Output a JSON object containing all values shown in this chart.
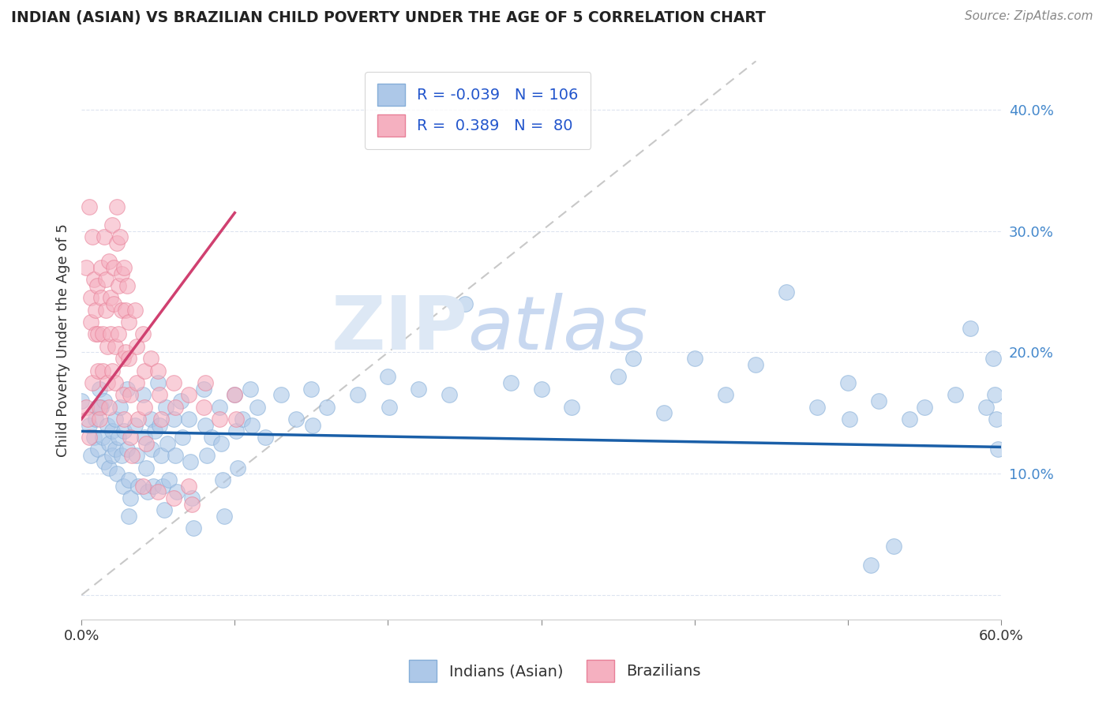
{
  "title": "INDIAN (ASIAN) VS BRAZILIAN CHILD POVERTY UNDER THE AGE OF 5 CORRELATION CHART",
  "source": "Source: ZipAtlas.com",
  "ylabel": "Child Poverty Under the Age of 5",
  "ytick_vals": [
    0.0,
    0.1,
    0.2,
    0.3,
    0.4
  ],
  "ytick_labels": [
    "",
    "10.0%",
    "20.0%",
    "30.0%",
    "40.0%"
  ],
  "xlim": [
    0.0,
    0.6
  ],
  "ylim": [
    -0.02,
    0.44
  ],
  "watermark_zip": "ZIP",
  "watermark_atlas": "atlas",
  "legend_R_indian": "-0.039",
  "legend_N_indian": "106",
  "legend_R_brazilian": "0.389",
  "legend_N_brazilian": "80",
  "indian_color": "#adc8e8",
  "indian_color_edge": "#85aed8",
  "brazilian_color": "#f5b0c0",
  "brazilian_color_edge": "#e88098",
  "indian_line_color": "#1a5fa8",
  "brazilian_line_color": "#d04070",
  "diagonal_line_color": "#c8c8c8",
  "background_color": "#ffffff",
  "grid_color": "#dde4f0",
  "tick_color": "#4488cc",
  "indian_scatter": [
    [
      0.01,
      0.155
    ],
    [
      0.005,
      0.14
    ],
    [
      0.012,
      0.17
    ],
    [
      0.008,
      0.13
    ],
    [
      0.006,
      0.115
    ],
    [
      0.009,
      0.145
    ],
    [
      0.011,
      0.12
    ],
    [
      0.013,
      0.155
    ],
    [
      0.014,
      0.13
    ],
    [
      0.015,
      0.16
    ],
    [
      0.015,
      0.11
    ],
    [
      0.017,
      0.14
    ],
    [
      0.018,
      0.125
    ],
    [
      0.018,
      0.105
    ],
    [
      0.02,
      0.135
    ],
    [
      0.02,
      0.115
    ],
    [
      0.022,
      0.145
    ],
    [
      0.022,
      0.12
    ],
    [
      0.023,
      0.1
    ],
    [
      0.024,
      0.13
    ],
    [
      0.025,
      0.155
    ],
    [
      0.026,
      0.115
    ],
    [
      0.027,
      0.09
    ],
    [
      0.028,
      0.135
    ],
    [
      0.03,
      0.17
    ],
    [
      0.03,
      0.12
    ],
    [
      0.031,
      0.095
    ],
    [
      0.032,
      0.08
    ],
    [
      0.035,
      0.14
    ],
    [
      0.036,
      0.115
    ],
    [
      0.037,
      0.09
    ],
    [
      0.04,
      0.165
    ],
    [
      0.041,
      0.13
    ],
    [
      0.042,
      0.105
    ],
    [
      0.043,
      0.085
    ],
    [
      0.045,
      0.145
    ],
    [
      0.046,
      0.12
    ],
    [
      0.047,
      0.09
    ],
    [
      0.048,
      0.135
    ],
    [
      0.05,
      0.175
    ],
    [
      0.051,
      0.14
    ],
    [
      0.052,
      0.115
    ],
    [
      0.053,
      0.09
    ],
    [
      0.054,
      0.07
    ],
    [
      0.055,
      0.155
    ],
    [
      0.056,
      0.125
    ],
    [
      0.057,
      0.095
    ],
    [
      0.06,
      0.145
    ],
    [
      0.061,
      0.115
    ],
    [
      0.062,
      0.085
    ],
    [
      0.065,
      0.16
    ],
    [
      0.066,
      0.13
    ],
    [
      0.07,
      0.145
    ],
    [
      0.071,
      0.11
    ],
    [
      0.072,
      0.08
    ],
    [
      0.08,
      0.17
    ],
    [
      0.081,
      0.14
    ],
    [
      0.082,
      0.115
    ],
    [
      0.085,
      0.13
    ],
    [
      0.09,
      0.155
    ],
    [
      0.091,
      0.125
    ],
    [
      0.092,
      0.095
    ],
    [
      0.1,
      0.165
    ],
    [
      0.101,
      0.135
    ],
    [
      0.102,
      0.105
    ],
    [
      0.105,
      0.145
    ],
    [
      0.11,
      0.17
    ],
    [
      0.111,
      0.14
    ],
    [
      0.115,
      0.155
    ],
    [
      0.12,
      0.13
    ],
    [
      0.13,
      0.165
    ],
    [
      0.14,
      0.145
    ],
    [
      0.15,
      0.17
    ],
    [
      0.151,
      0.14
    ],
    [
      0.16,
      0.155
    ],
    [
      0.18,
      0.165
    ],
    [
      0.2,
      0.18
    ],
    [
      0.201,
      0.155
    ],
    [
      0.22,
      0.17
    ],
    [
      0.24,
      0.165
    ],
    [
      0.25,
      0.24
    ],
    [
      0.28,
      0.175
    ],
    [
      0.3,
      0.17
    ],
    [
      0.32,
      0.155
    ],
    [
      0.35,
      0.18
    ],
    [
      0.36,
      0.195
    ],
    [
      0.38,
      0.15
    ],
    [
      0.4,
      0.195
    ],
    [
      0.42,
      0.165
    ],
    [
      0.44,
      0.19
    ],
    [
      0.46,
      0.25
    ],
    [
      0.48,
      0.155
    ],
    [
      0.5,
      0.175
    ],
    [
      0.501,
      0.145
    ],
    [
      0.52,
      0.16
    ],
    [
      0.54,
      0.145
    ],
    [
      0.55,
      0.155
    ],
    [
      0.57,
      0.165
    ],
    [
      0.58,
      0.22
    ],
    [
      0.59,
      0.155
    ],
    [
      0.595,
      0.195
    ],
    [
      0.596,
      0.165
    ],
    [
      0.597,
      0.145
    ],
    [
      0.598,
      0.12
    ],
    [
      0.031,
      0.065
    ],
    [
      0.073,
      0.055
    ],
    [
      0.093,
      0.065
    ],
    [
      0.53,
      0.04
    ],
    [
      0.0,
      0.16
    ],
    [
      0.515,
      0.025
    ]
  ],
  "brazilian_scatter": [
    [
      0.003,
      0.155
    ],
    [
      0.004,
      0.145
    ],
    [
      0.005,
      0.13
    ],
    [
      0.003,
      0.27
    ],
    [
      0.005,
      0.32
    ],
    [
      0.006,
      0.245
    ],
    [
      0.006,
      0.225
    ],
    [
      0.007,
      0.175
    ],
    [
      0.007,
      0.295
    ],
    [
      0.008,
      0.26
    ],
    [
      0.009,
      0.235
    ],
    [
      0.009,
      0.215
    ],
    [
      0.01,
      0.255
    ],
    [
      0.011,
      0.215
    ],
    [
      0.011,
      0.185
    ],
    [
      0.012,
      0.155
    ],
    [
      0.012,
      0.145
    ],
    [
      0.013,
      0.27
    ],
    [
      0.013,
      0.245
    ],
    [
      0.014,
      0.215
    ],
    [
      0.014,
      0.185
    ],
    [
      0.015,
      0.295
    ],
    [
      0.016,
      0.26
    ],
    [
      0.016,
      0.235
    ],
    [
      0.017,
      0.205
    ],
    [
      0.017,
      0.175
    ],
    [
      0.018,
      0.155
    ],
    [
      0.018,
      0.275
    ],
    [
      0.019,
      0.245
    ],
    [
      0.019,
      0.215
    ],
    [
      0.02,
      0.185
    ],
    [
      0.02,
      0.305
    ],
    [
      0.021,
      0.27
    ],
    [
      0.021,
      0.24
    ],
    [
      0.022,
      0.205
    ],
    [
      0.022,
      0.175
    ],
    [
      0.023,
      0.32
    ],
    [
      0.023,
      0.29
    ],
    [
      0.024,
      0.255
    ],
    [
      0.024,
      0.215
    ],
    [
      0.025,
      0.295
    ],
    [
      0.026,
      0.265
    ],
    [
      0.026,
      0.235
    ],
    [
      0.027,
      0.195
    ],
    [
      0.027,
      0.165
    ],
    [
      0.028,
      0.145
    ],
    [
      0.028,
      0.27
    ],
    [
      0.029,
      0.235
    ],
    [
      0.029,
      0.2
    ],
    [
      0.03,
      0.255
    ],
    [
      0.031,
      0.225
    ],
    [
      0.031,
      0.195
    ],
    [
      0.032,
      0.165
    ],
    [
      0.032,
      0.13
    ],
    [
      0.033,
      0.115
    ],
    [
      0.035,
      0.235
    ],
    [
      0.036,
      0.205
    ],
    [
      0.036,
      0.175
    ],
    [
      0.037,
      0.145
    ],
    [
      0.04,
      0.215
    ],
    [
      0.041,
      0.185
    ],
    [
      0.041,
      0.155
    ],
    [
      0.042,
      0.125
    ],
    [
      0.045,
      0.195
    ],
    [
      0.05,
      0.185
    ],
    [
      0.051,
      0.165
    ],
    [
      0.052,
      0.145
    ],
    [
      0.06,
      0.175
    ],
    [
      0.061,
      0.155
    ],
    [
      0.07,
      0.165
    ],
    [
      0.08,
      0.155
    ],
    [
      0.081,
      0.175
    ],
    [
      0.09,
      0.145
    ],
    [
      0.1,
      0.165
    ],
    [
      0.101,
      0.145
    ],
    [
      0.04,
      0.09
    ],
    [
      0.05,
      0.085
    ],
    [
      0.06,
      0.08
    ],
    [
      0.07,
      0.09
    ],
    [
      0.072,
      0.075
    ]
  ]
}
